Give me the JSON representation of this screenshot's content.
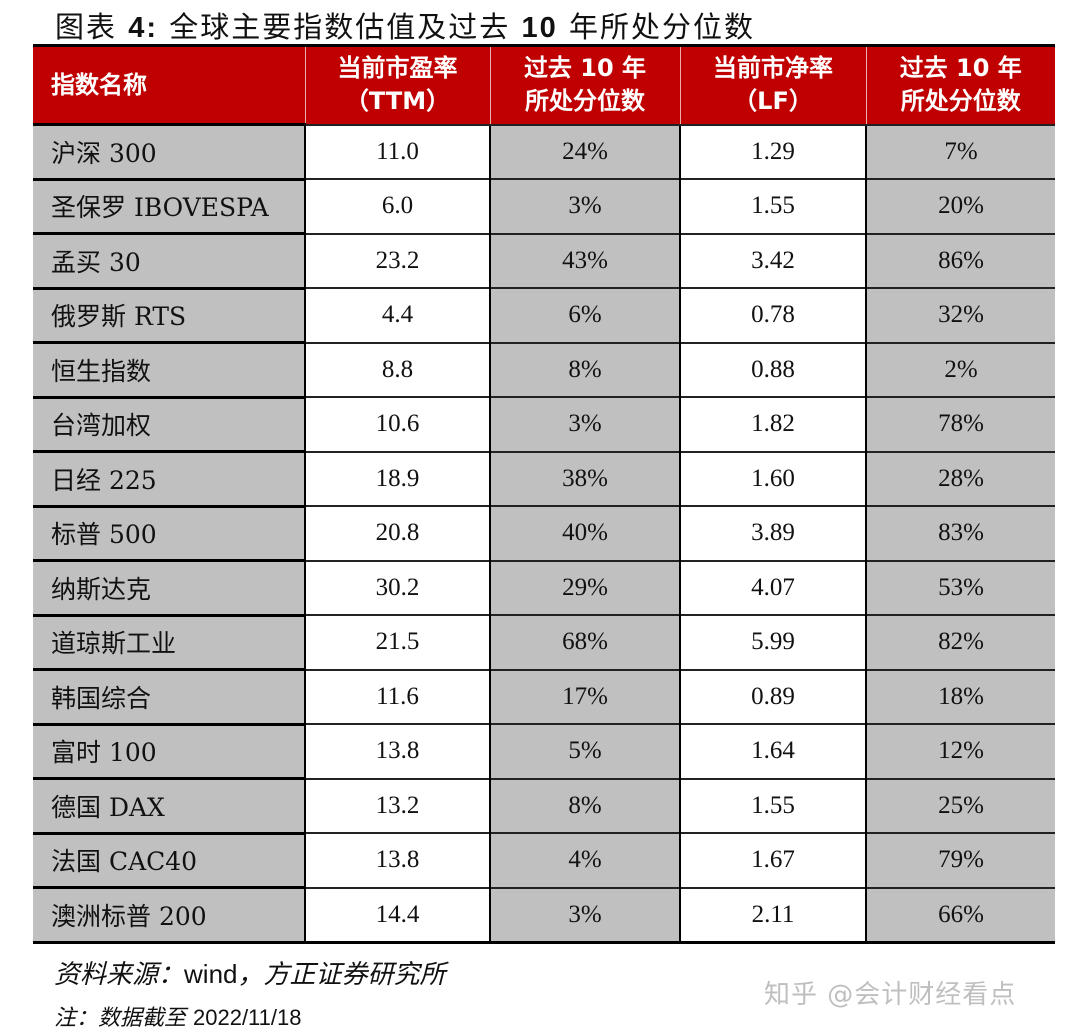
{
  "title": {
    "prefix": "图表",
    "number": "4:",
    "text": "全球主要指数估值及过去",
    "years": "10",
    "suffix": "年所处分位数"
  },
  "table": {
    "headers": [
      {
        "line1": "指数名称",
        "line2": ""
      },
      {
        "line1": "当前市盈率",
        "line2": "（TTM）"
      },
      {
        "line1": "过去 10 年",
        "line2": "所处分位数"
      },
      {
        "line1": "当前市净率",
        "line2": "（LF）"
      },
      {
        "line1": "过去 10 年",
        "line2": "所处分位数"
      }
    ],
    "rows": [
      {
        "name": "沪深 300",
        "pe": "11.0",
        "pe_pct": "24%",
        "pb": "1.29",
        "pb_pct": "7%"
      },
      {
        "name": "圣保罗 IBOVESPA",
        "pe": "6.0",
        "pe_pct": "3%",
        "pb": "1.55",
        "pb_pct": "20%"
      },
      {
        "name": "孟买 30",
        "pe": "23.2",
        "pe_pct": "43%",
        "pb": "3.42",
        "pb_pct": "86%"
      },
      {
        "name": "俄罗斯 RTS",
        "pe": "4.4",
        "pe_pct": "6%",
        "pb": "0.78",
        "pb_pct": "32%"
      },
      {
        "name": "恒生指数",
        "pe": "8.8",
        "pe_pct": "8%",
        "pb": "0.88",
        "pb_pct": "2%"
      },
      {
        "name": "台湾加权",
        "pe": "10.6",
        "pe_pct": "3%",
        "pb": "1.82",
        "pb_pct": "78%"
      },
      {
        "name": "日经 225",
        "pe": "18.9",
        "pe_pct": "38%",
        "pb": "1.60",
        "pb_pct": "28%"
      },
      {
        "name": "标普 500",
        "pe": "20.8",
        "pe_pct": "40%",
        "pb": "3.89",
        "pb_pct": "83%"
      },
      {
        "name": "纳斯达克",
        "pe": "30.2",
        "pe_pct": "29%",
        "pb": "4.07",
        "pb_pct": "53%"
      },
      {
        "name": "道琼斯工业",
        "pe": "21.5",
        "pe_pct": "68%",
        "pb": "5.99",
        "pb_pct": "82%"
      },
      {
        "name": "韩国综合",
        "pe": "11.6",
        "pe_pct": "17%",
        "pb": "0.89",
        "pb_pct": "18%"
      },
      {
        "name": "富时 100",
        "pe": "13.8",
        "pe_pct": "5%",
        "pb": "1.64",
        "pb_pct": "12%"
      },
      {
        "name": "德国 DAX",
        "pe": "13.2",
        "pe_pct": "8%",
        "pb": "1.55",
        "pb_pct": "25%"
      },
      {
        "name": "法国 CAC40",
        "pe": "13.8",
        "pe_pct": "4%",
        "pb": "1.67",
        "pb_pct": "79%"
      },
      {
        "name": "澳洲标普 200",
        "pe": "14.4",
        "pe_pct": "3%",
        "pb": "2.11",
        "pb_pct": "66%"
      }
    ]
  },
  "footer": {
    "source_label": "资料来源：",
    "source_en": "wind",
    "source_rest": "，方正证券研究所",
    "note_label": "注：数据截至 ",
    "note_date": "2022/11/18"
  },
  "watermark": "知乎 @会计财经看点",
  "colors": {
    "header_bg": "#c00000",
    "header_text": "#ffffff",
    "grey_cell": "#c0c0c0",
    "white_cell": "#ffffff"
  }
}
